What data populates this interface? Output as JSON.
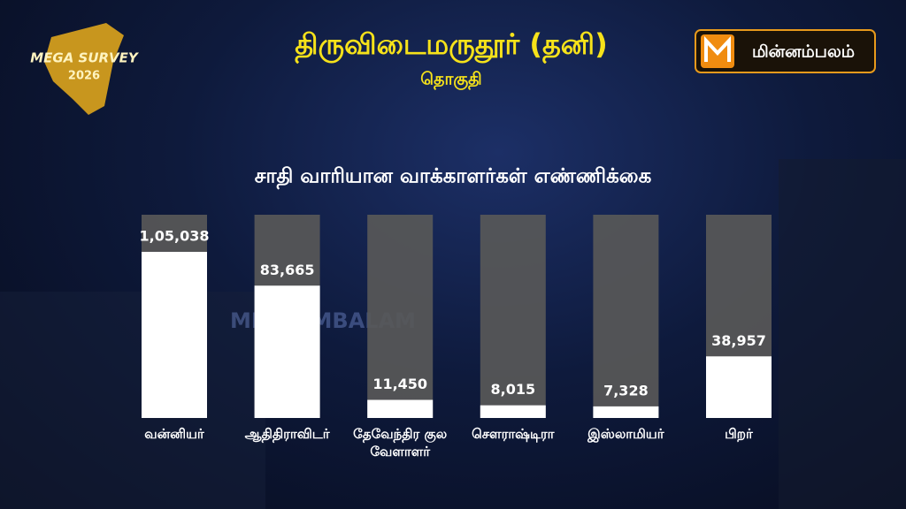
{
  "header": {
    "title": "திருவிடைமருதூர் (தனி)",
    "subtitle": "தொகுதி"
  },
  "logos": {
    "survey": "MEGA SURVEY",
    "year": "2026",
    "brand": "மின்னம்பலம்"
  },
  "watermark": "MINNAMBALAM",
  "chart_data": {
    "type": "bar",
    "title": "சாதி வாரியான வாக்காளர்கள் எண்ணிக்கை",
    "categories": [
      "வன்னியர்",
      "ஆதிதிராவிடர்",
      "தேவேந்திர குல வேளாளர்",
      "சௌராஷ்டிரா",
      "இஸ்லாமியர்",
      "பிறர்"
    ],
    "values": [
      105038,
      83665,
      11450,
      8015,
      7328,
      38957
    ],
    "value_labels": [
      "1,05,038",
      "83,665",
      "11,450",
      "8,015",
      "7,328",
      "38,957"
    ],
    "color": "#ffffff"
  }
}
